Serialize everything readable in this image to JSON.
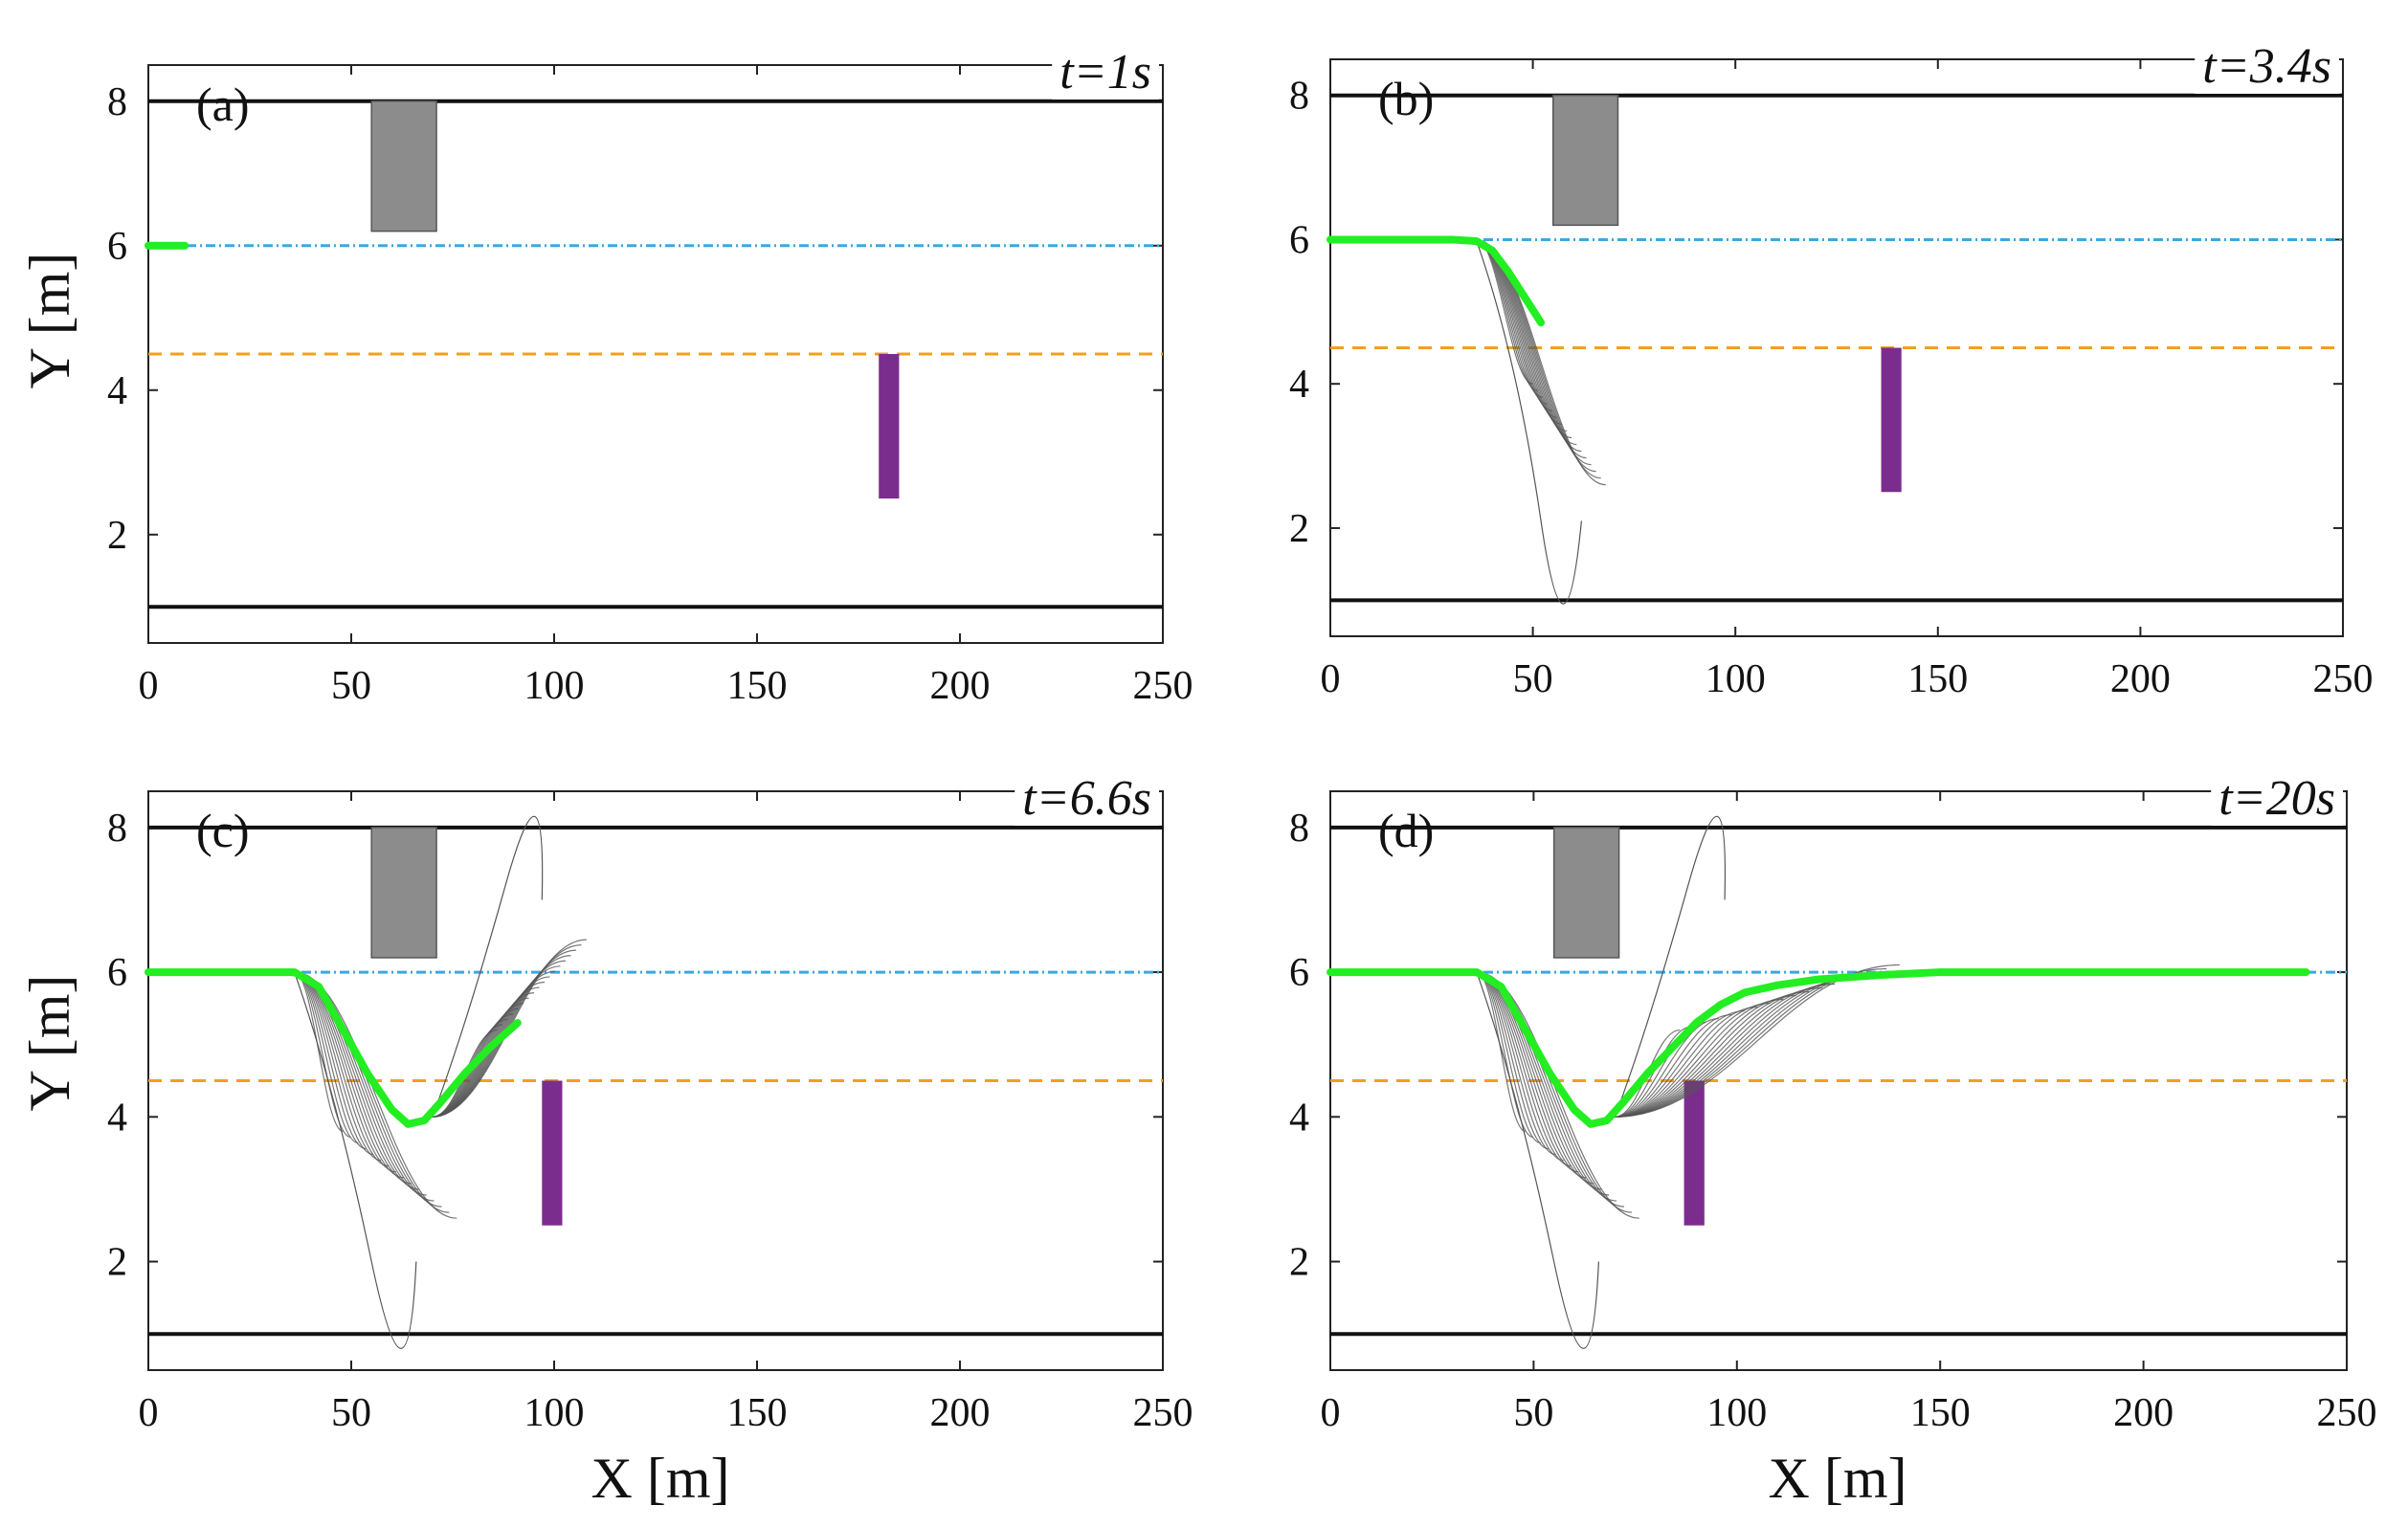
{
  "figure": {
    "xlabel": "X [m]",
    "ylabel": "Y [m]",
    "colors": {
      "boundary": "#111111",
      "reference_line": "#3aa8e0",
      "lane_line": "#f0a020",
      "path": "#22ee22",
      "candidates": "#555555",
      "static_obstacle": "#8c8c8c",
      "moving_obstacle": "#7b2d8e"
    }
  },
  "chart_data": [
    {
      "type": "line",
      "panel": "(a)",
      "time_label": "t=1s",
      "xlim": [
        0,
        250
      ],
      "ylim": [
        0.5,
        8.5
      ],
      "xticks": [
        0,
        50,
        100,
        150,
        200,
        250
      ],
      "yticks": [
        2,
        4,
        6,
        8
      ],
      "boundaries_y": [
        1,
        8
      ],
      "reference_y": 6,
      "lane_y": 4.5,
      "static_obstacle": {
        "x": [
          55,
          71
        ],
        "y": [
          6.2,
          8
        ]
      },
      "moving_obstacle": {
        "x": [
          180,
          185
        ],
        "y": [
          2.5,
          4.5
        ]
      },
      "path": {
        "x": [
          0,
          4,
          9
        ],
        "y": [
          6,
          6,
          6
        ]
      },
      "candidates": {
        "x0": 55,
        "fan_count": 0,
        "range": [
          0,
          0
        ],
        "xend": [
          0,
          0
        ],
        "yend": [
          0,
          0
        ],
        "curls": []
      }
    },
    {
      "type": "line",
      "panel": "(b)",
      "time_label": "t=3.4s",
      "xlim": [
        0,
        250
      ],
      "ylim": [
        0.5,
        8.5
      ],
      "xticks": [
        0,
        50,
        100,
        150,
        200,
        250
      ],
      "yticks": [
        2,
        4,
        6,
        8
      ],
      "boundaries_y": [
        1,
        8
      ],
      "reference_y": 6,
      "lane_y": 4.5,
      "static_obstacle": {
        "x": [
          55,
          71
        ],
        "y": [
          6.2,
          8
        ]
      },
      "moving_obstacle": {
        "x": [
          136,
          141
        ],
        "y": [
          2.5,
          4.5
        ]
      },
      "path": {
        "x": [
          0,
          10,
          20,
          30,
          36,
          40,
          44,
          48,
          52
        ],
        "y": [
          6,
          6,
          6,
          6,
          5.98,
          5.85,
          5.55,
          5.2,
          4.85
        ]
      },
      "candidates": {
        "x0": 36,
        "fan_count": 16,
        "range": [
          0,
          1
        ],
        "xend": [
          50,
          68
        ],
        "yend": [
          4.0,
          2.6
        ],
        "curls": [
          [
            46,
            4.4,
            52,
            2.1,
            62,
            2.1
          ]
        ]
      }
    },
    {
      "type": "line",
      "panel": "(c)",
      "time_label": "t=6.6s",
      "xlim": [
        0,
        250
      ],
      "ylim": [
        0.5,
        8.5
      ],
      "xticks": [
        0,
        50,
        100,
        150,
        200,
        250
      ],
      "yticks": [
        2,
        4,
        6,
        8
      ],
      "boundaries_y": [
        1,
        8
      ],
      "reference_y": 6,
      "lane_y": 4.5,
      "static_obstacle": {
        "x": [
          55,
          71
        ],
        "y": [
          6.2,
          8
        ]
      },
      "moving_obstacle": {
        "x": [
          97,
          102
        ],
        "y": [
          2.5,
          4.5
        ]
      },
      "path": {
        "x": [
          0,
          20,
          36,
          42,
          48,
          54,
          60,
          64,
          68,
          72,
          78,
          84,
          91
        ],
        "y": [
          6,
          6,
          6,
          5.8,
          5.2,
          4.6,
          4.1,
          3.9,
          3.95,
          4.2,
          4.6,
          4.95,
          5.3
        ]
      },
      "candidates": {
        "x0": 36,
        "fan_count": 16,
        "range": [
          0,
          1
        ],
        "xend": [
          48,
          76
        ],
        "yend": [
          3.8,
          2.6
        ],
        "curls": [
          [
            46,
            4.4,
            55,
            2.0,
            66,
            2.0
          ]
        ],
        "fan2": {
          "x0": 70,
          "y0": 4.0,
          "count": 18,
          "xend": [
            86,
            108
          ],
          "yend": [
            5.2,
            6.45
          ],
          "curls": [
            [
              78,
              5.2,
              88,
              7.2,
              97,
              7.0
            ]
          ]
        }
      }
    },
    {
      "type": "line",
      "panel": "(d)",
      "time_label": "t=20s",
      "xlim": [
        0,
        250
      ],
      "ylim": [
        0.5,
        8.5
      ],
      "xticks": [
        0,
        50,
        100,
        150,
        200,
        250
      ],
      "yticks": [
        2,
        4,
        6,
        8
      ],
      "boundaries_y": [
        1,
        8
      ],
      "reference_y": 6,
      "lane_y": 4.5,
      "static_obstacle": {
        "x": [
          55,
          71
        ],
        "y": [
          6.2,
          8
        ]
      },
      "moving_obstacle": {
        "x": [
          87,
          92
        ],
        "y": [
          2.5,
          4.5
        ]
      },
      "path": {
        "x": [
          0,
          20,
          36,
          42,
          48,
          54,
          60,
          64,
          68,
          72,
          78,
          84,
          90,
          96,
          102,
          110,
          120,
          135,
          150,
          180,
          210,
          240
        ],
        "y": [
          6,
          6,
          6,
          5.8,
          5.2,
          4.6,
          4.1,
          3.9,
          3.95,
          4.2,
          4.6,
          4.95,
          5.3,
          5.55,
          5.72,
          5.82,
          5.9,
          5.96,
          6,
          6,
          6,
          6
        ]
      },
      "candidates": {
        "x0": 36,
        "fan_count": 16,
        "range": [
          0,
          1
        ],
        "xend": [
          48,
          76
        ],
        "yend": [
          3.8,
          2.6
        ],
        "curls": [
          [
            46,
            4.4,
            55,
            2.0,
            66,
            2.0
          ]
        ],
        "fan2": {
          "x0": 70,
          "y0": 4.0,
          "count": 18,
          "xend": [
            86,
            140
          ],
          "yend": [
            5.2,
            6.1
          ],
          "curls": [
            [
              78,
              5.2,
              88,
              7.2,
              97,
              7.0
            ]
          ]
        }
      }
    }
  ]
}
